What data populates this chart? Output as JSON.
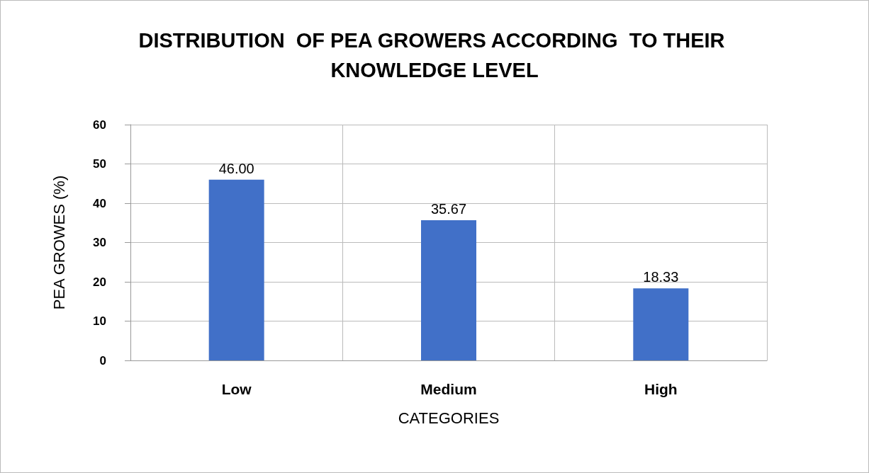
{
  "chart_data": {
    "type": "bar",
    "title": "DISTRIBUTION  OF PEA GROWERS ACCORDING  TO THEIR KNOWLEDGE LEVEL",
    "xlabel": "CATEGORIES",
    "ylabel": "PEA GROWES (%)",
    "categories": [
      "Low",
      "Medium",
      "High"
    ],
    "values": [
      46,
      35.67,
      18.33
    ],
    "value_labels": [
      "46.00",
      "35.67",
      "18.33"
    ],
    "color": "#4170c8",
    "ylim": [
      0,
      60
    ],
    "yticks": [
      0,
      10,
      20,
      30,
      40,
      50,
      60
    ],
    "grid": true
  }
}
